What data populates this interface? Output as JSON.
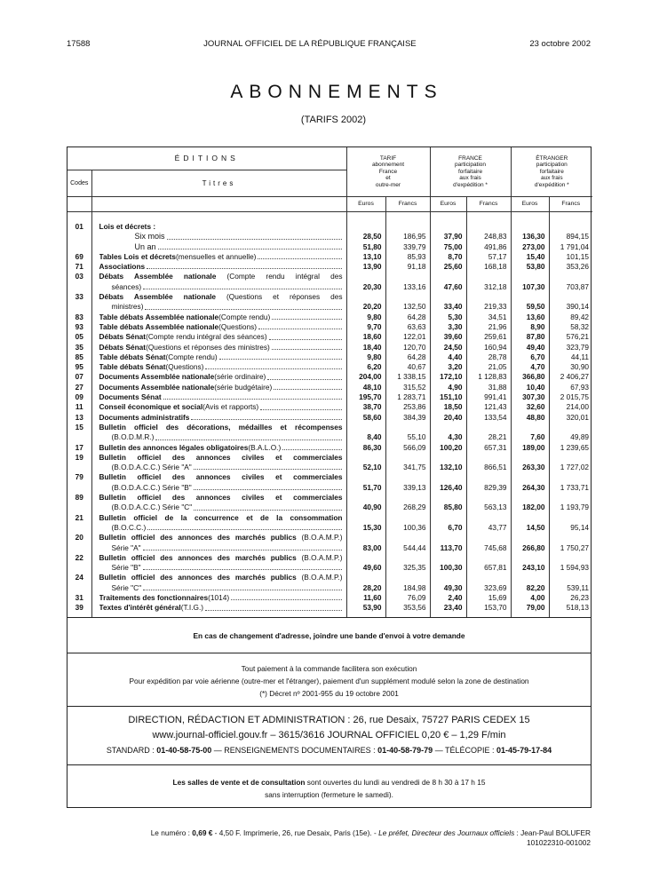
{
  "header": {
    "page": "17588",
    "journal": "JOURNAL OFFICIEL DE LA RÉPUBLIQUE FRANÇAISE",
    "date": "23 octobre 2002"
  },
  "title": "ABONNEMENTS",
  "subtitle": "(TARIFS 2002)",
  "table": {
    "editions": "ÉDITIONS",
    "codes": "Codes",
    "titres": "Titres",
    "groups": [
      [
        "TARIF",
        "abonnement",
        "France",
        "et",
        "outre-mer"
      ],
      [
        "FRANCE",
        "participation",
        "forfaitaire",
        "aux frais",
        "d'expédition *"
      ],
      [
        "ÉTRANGER",
        "participation",
        "forfaitaire",
        "aux frais",
        "d'expédition *"
      ]
    ],
    "currencies": [
      "Euros",
      "Francs",
      "Euros",
      "Francs",
      "Euros",
      "Francs"
    ],
    "rows": [
      {
        "code": "01",
        "bold": "Lois et décrets :",
        "text": "",
        "values": null
      },
      {
        "code": "",
        "sub": "Six mois",
        "values": [
          "28,50",
          "186,95",
          "37,90",
          "248,83",
          "136,30",
          "894,15"
        ]
      },
      {
        "code": "",
        "sub": "Un an",
        "values": [
          "51,80",
          "339,79",
          "75,00",
          "491,86",
          "273,00",
          "1 791,04"
        ]
      },
      {
        "code": "69",
        "bold": "Tables Lois et décrets",
        "text": " (mensuelles et annuelle)",
        "values": [
          "13,10",
          "85,93",
          "8,70",
          "57,17",
          "15,40",
          "101,15"
        ]
      },
      {
        "code": "71",
        "bold": "Associations",
        "text": "",
        "values": [
          "13,90",
          "91,18",
          "25,60",
          "168,18",
          "53,80",
          "353,26"
        ]
      },
      {
        "code": "03",
        "bold": "Débats Assemblée nationale",
        "text": " (Compte rendu intégral des",
        "cont": "séances)",
        "values": [
          "20,30",
          "133,16",
          "47,60",
          "312,18",
          "107,30",
          "703,87"
        ]
      },
      {
        "code": "33",
        "bold": "Débats Assemblée nationale",
        "text": " (Questions et réponses des",
        "cont": "ministres)",
        "values": [
          "20,20",
          "132,50",
          "33,40",
          "219,33",
          "59,50",
          "390,14"
        ]
      },
      {
        "code": "83",
        "bold": "Table débats Assemblée nationale",
        "text": " (Compte rendu)",
        "values": [
          "9,80",
          "64,28",
          "5,30",
          "34,51",
          "13,60",
          "89,42"
        ]
      },
      {
        "code": "93",
        "bold": "Table débats Assemblée nationale",
        "text": " (Questions)",
        "values": [
          "9,70",
          "63,63",
          "3,30",
          "21,96",
          "8,90",
          "58,32"
        ]
      },
      {
        "code": "05",
        "bold": "Débats Sénat",
        "text": " (Compte rendu intégral des séances)",
        "values": [
          "18,60",
          "122,01",
          "39,60",
          "259,61",
          "87,80",
          "576,21"
        ]
      },
      {
        "code": "35",
        "bold": "Débats Sénat",
        "text": " (Questions et réponses des ministres)",
        "values": [
          "18,40",
          "120,70",
          "24,50",
          "160,94",
          "49,40",
          "323,79"
        ]
      },
      {
        "code": "85",
        "bold": "Table débats Sénat",
        "text": " (Compte rendu)",
        "values": [
          "9,80",
          "64,28",
          "4,40",
          "28,78",
          "6,70",
          "44,11"
        ]
      },
      {
        "code": "95",
        "bold": "Table débats Sénat",
        "text": " (Questions)",
        "values": [
          "6,20",
          "40,67",
          "3,20",
          "21,05",
          "4,70",
          "30,90"
        ]
      },
      {
        "code": "07",
        "bold": "Documents Assemblée nationale",
        "text": " (série ordinaire)",
        "values": [
          "204,00",
          "1 338,15",
          "172,10",
          "1 128,83",
          "366,80",
          "2 406,27"
        ]
      },
      {
        "code": "27",
        "bold": "Documents Assemblée nationale",
        "text": " (série budgétaire)",
        "values": [
          "48,10",
          "315,52",
          "4,90",
          "31,88",
          "10,40",
          "67,93"
        ]
      },
      {
        "code": "09",
        "bold": "Documents Sénat",
        "text": "",
        "values": [
          "195,70",
          "1 283,71",
          "151,10",
          "991,41",
          "307,30",
          "2 015,75"
        ]
      },
      {
        "code": "11",
        "bold": "Conseil économique et social",
        "text": " (Avis et rapports)",
        "values": [
          "38,70",
          "253,86",
          "18,50",
          "121,43",
          "32,60",
          "214,00"
        ]
      },
      {
        "code": "13",
        "bold": "Documents administratifs",
        "text": "",
        "values": [
          "58,60",
          "384,39",
          "20,40",
          "133,54",
          "48,80",
          "320,01"
        ]
      },
      {
        "code": "15",
        "bold": "Bulletin officiel des décorations, médailles et récompenses",
        "text": "",
        "cont": "(B.O.D.M.R.)",
        "values": [
          "8,40",
          "55,10",
          "4,30",
          "28,21",
          "7,60",
          "49,89"
        ]
      },
      {
        "code": "17",
        "bold": "Bulletin des annonces légales obligatoires",
        "text": " (B.A.L.O.)",
        "values": [
          "86,30",
          "566,09",
          "100,20",
          "657,31",
          "189,00",
          "1 239,65"
        ]
      },
      {
        "code": "19",
        "bold": "Bulletin officiel des annonces civiles et commerciales",
        "text": "",
        "cont": "(B.O.D.A.C.C.) Série \"A\"",
        "values": [
          "52,10",
          "341,75",
          "132,10",
          "866,51",
          "263,30",
          "1 727,02"
        ]
      },
      {
        "code": "79",
        "bold": "Bulletin officiel des annonces civiles et commerciales",
        "text": "",
        "cont": "(B.O.D.A.C.C.) Série \"B\"",
        "values": [
          "51,70",
          "339,13",
          "126,40",
          "829,39",
          "264,30",
          "1 733,71"
        ]
      },
      {
        "code": "89",
        "bold": "Bulletin officiel des annonces civiles et commerciales",
        "text": "",
        "cont": "(B.O.D.A.C.C.) Série \"C\"",
        "values": [
          "40,90",
          "268,29",
          "85,80",
          "563,13",
          "182,00",
          "1 193,79"
        ]
      },
      {
        "code": "21",
        "bold": "Bulletin officiel de la concurrence et de la consommation",
        "text": "",
        "cont": "(B.O.C.C.)",
        "values": [
          "15,30",
          "100,36",
          "6,70",
          "43,77",
          "14,50",
          "95,14"
        ]
      },
      {
        "code": "20",
        "bold": "Bulletin officiel des annonces des marchés publics",
        "text": " (B.O.A.M.P.)",
        "cont": "Série \"A\"",
        "values": [
          "83,00",
          "544,44",
          "113,70",
          "745,68",
          "266,80",
          "1 750,27"
        ]
      },
      {
        "code": "22",
        "bold": "Bulletin officiel des annonces des marchés publics",
        "text": " (B.O.A.M.P.)",
        "cont": "Série \"B\"",
        "values": [
          "49,60",
          "325,35",
          "100,30",
          "657,81",
          "243,10",
          "1 594,93"
        ]
      },
      {
        "code": "24",
        "bold": "Bulletin officiel des annonces des marchés publics",
        "text": " (B.O.A.M.P.)",
        "cont": "Série \"C\"",
        "values": [
          "28,20",
          "184,98",
          "49,30",
          "323,69",
          "82,20",
          "539,11"
        ]
      },
      {
        "code": "31",
        "bold": "Traitements des fonctionnaires",
        "text": " (1014)",
        "values": [
          "11,60",
          "76,09",
          "2,40",
          "15,69",
          "4,00",
          "26,23"
        ]
      },
      {
        "code": "39",
        "bold": "Textes d'intérêt général",
        "text": " (T.I.G.)",
        "values": [
          "53,90",
          "353,56",
          "23,40",
          "153,70",
          "79,00",
          "518,13"
        ]
      }
    ]
  },
  "notice": "En cas de changement d'adresse, joindre une bande d'envoi à votre demande",
  "payment": {
    "line1": "Tout paiement à la commande facilitera son exécution",
    "line2": "Pour expédition par voie aérienne (outre-mer et l'étranger), paiement d'un supplément modulé selon la zone de destination",
    "line3": "(*) Décret nº 2001-955 du 19 octobre 2001"
  },
  "direction": {
    "line1": "DIRECTION, RÉDACTION ET ADMINISTRATION : 26, rue Desaix, 75727 PARIS CEDEX 15",
    "line2": "www.journal-officiel.gouv.fr – 3615/3616 JOURNAL OFFICIEL   0,20 € – 1,29 F/min",
    "standard_label": "STANDARD : ",
    "standard": "01-40-58-75-00",
    "renseignements_label": " — RENSEIGNEMENTS DOCUMENTAIRES : ",
    "renseignements": "01-40-58-79-79",
    "telecopie_label": " — TÉLÉCOPIE : ",
    "telecopie": "01-45-79-17-84"
  },
  "salles": {
    "bold": "Les salles de vente et de consultation",
    "text": " sont ouvertes du lundi au vendredi de 8 h 30 à 17 h 15",
    "line2": "sans interruption (fermeture le samedi)."
  },
  "footer": {
    "label": "Le numéro : ",
    "price": "0,69 €",
    "rest": " - 4,50 F. Imprimerie, 26, rue Desaix, Paris (15e). - ",
    "italic": "Le préfet, Directeur des Journaux officiels",
    "signer": " : Jean-Paul BOLUFER",
    "ref": "101022310-001002"
  }
}
